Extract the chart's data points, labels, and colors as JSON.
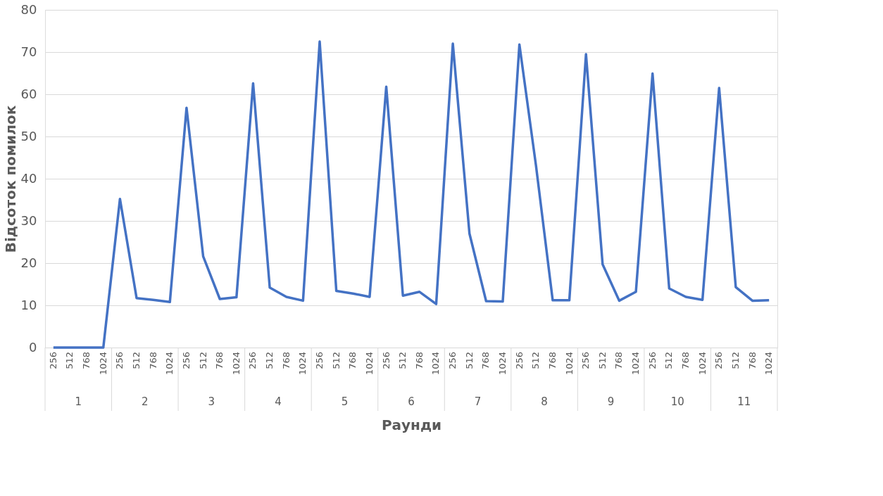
{
  "chart_data": {
    "type": "line",
    "xlabel": "Раунди",
    "ylabel": "Відсоток помилок",
    "categories": [
      "256",
      "512",
      "768",
      "1024",
      "256",
      "512",
      "768",
      "1024",
      "256",
      "512",
      "768",
      "1024",
      "256",
      "512",
      "768",
      "1024",
      "256",
      "512",
      "768",
      "1024",
      "256",
      "512",
      "768",
      "1024",
      "256",
      "512",
      "768",
      "1024",
      "256",
      "512",
      "768",
      "1024",
      "256",
      "512",
      "768",
      "1024",
      "256",
      "512",
      "768",
      "1024",
      "256",
      "512",
      "768",
      "1024"
    ],
    "series": [
      {
        "color": "#4472c4",
        "values": [
          0,
          0,
          0,
          0,
          35.2,
          11.7,
          11.3,
          10.8,
          56.8,
          21.6,
          11.5,
          11.9,
          62.6,
          14.2,
          12.0,
          11.1,
          72.5,
          13.4,
          12.8,
          12.0,
          61.8,
          12.3,
          13.2,
          10.3,
          72.0,
          27.0,
          11.0,
          10.9,
          71.8,
          43.0,
          11.2,
          11.2,
          69.5,
          19.7,
          11.1,
          13.2,
          64.9,
          14.0,
          12.0,
          11.3,
          61.5,
          14.3,
          11.1,
          11.2
        ]
      }
    ],
    "annotations": [
      "1",
      "2",
      "3",
      "4",
      "5",
      "6",
      "7",
      "8",
      "9",
      "10",
      "11"
    ],
    "ylim": [
      0,
      80
    ],
    "yticks": [
      0,
      10,
      20,
      30,
      40,
      50,
      60,
      70,
      80
    ],
    "grid": "y",
    "marker": "none",
    "line_style": "solid"
  }
}
